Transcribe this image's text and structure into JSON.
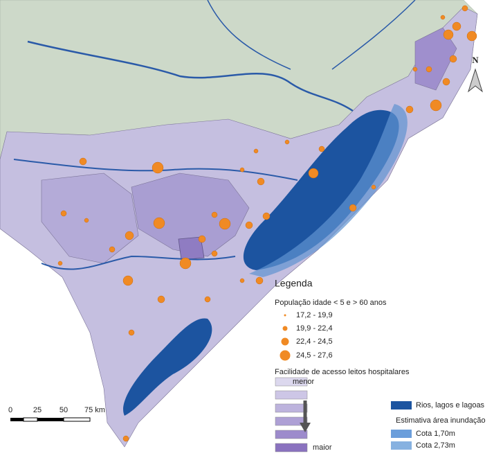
{
  "north": "N",
  "legend": {
    "title": "Legenda",
    "population": {
      "title": "População idade < 5 e > 60 anos",
      "classes": [
        "17,2 - 19,9",
        "19,9 - 22,4",
        "22,4 - 24,5",
        "24,5 - 27,6"
      ]
    },
    "access": {
      "title": "Facilidade de acesso leitos hospitalares",
      "low": "menor",
      "high": "maior"
    },
    "water": "Rios, lagos e lagoas",
    "flood": {
      "title": "Estimativa área inundação",
      "levels": [
        "Cota 1,70m",
        "Cota 2,73m"
      ]
    }
  },
  "scale": {
    "labels": [
      "0",
      "25",
      "50",
      "75 km"
    ]
  }
}
